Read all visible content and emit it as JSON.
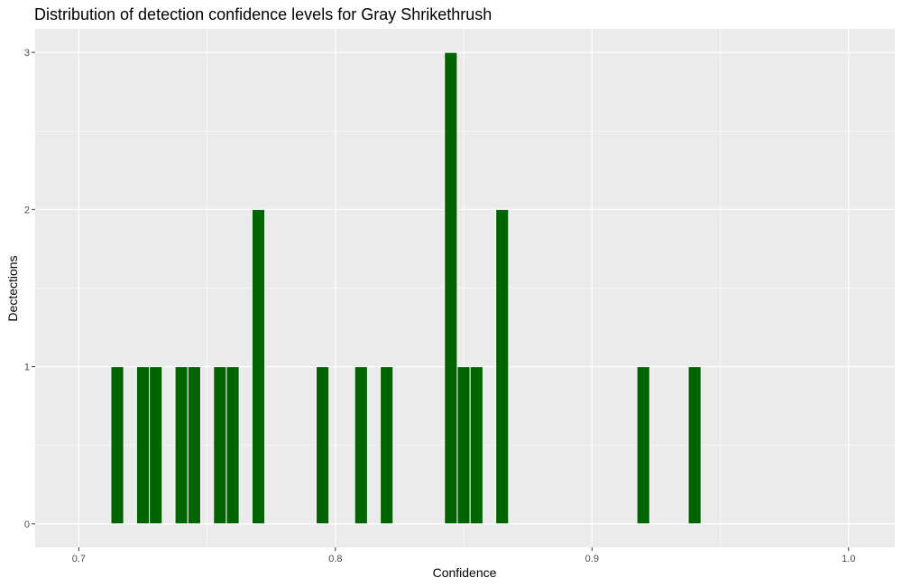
{
  "chart_data": {
    "type": "bar",
    "title": "Distribution of detection confidence levels for Gray Shrikethrush",
    "xlabel": "Confidence",
    "ylabel": "Dectections",
    "xlim": [
      0.683,
      1.018
    ],
    "ylim": [
      -0.15,
      3.15
    ],
    "x_ticks": [
      "0.7",
      "0.8",
      "0.9",
      "1.0"
    ],
    "y_ticks": [
      "0",
      "1",
      "2",
      "3"
    ],
    "bin_width": 0.005,
    "bars": [
      {
        "x": 0.715,
        "count": 1
      },
      {
        "x": 0.725,
        "count": 1
      },
      {
        "x": 0.73,
        "count": 1
      },
      {
        "x": 0.74,
        "count": 1
      },
      {
        "x": 0.745,
        "count": 1
      },
      {
        "x": 0.755,
        "count": 1
      },
      {
        "x": 0.76,
        "count": 1
      },
      {
        "x": 0.77,
        "count": 2
      },
      {
        "x": 0.795,
        "count": 1
      },
      {
        "x": 0.81,
        "count": 1
      },
      {
        "x": 0.82,
        "count": 1
      },
      {
        "x": 0.845,
        "count": 3
      },
      {
        "x": 0.85,
        "count": 1
      },
      {
        "x": 0.855,
        "count": 1
      },
      {
        "x": 0.865,
        "count": 2
      },
      {
        "x": 0.92,
        "count": 1
      },
      {
        "x": 0.94,
        "count": 1
      }
    ],
    "grid": true,
    "colors": {
      "bar": "#006400",
      "panel": "#ebebeb",
      "grid": "#ffffff"
    }
  }
}
